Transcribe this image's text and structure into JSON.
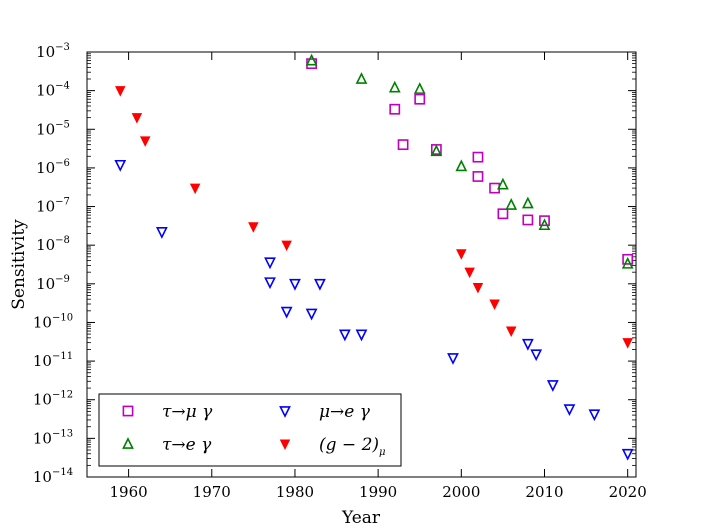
{
  "chart_data": {
    "type": "scatter",
    "title": "",
    "xlabel": "Year",
    "ylabel": "Sensitivity",
    "xlim": [
      1955,
      2021
    ],
    "ylim_log10": [
      -14,
      -3
    ],
    "y_scale": "log",
    "x_ticks": [
      1960,
      1970,
      1980,
      1990,
      2000,
      2010,
      2020
    ],
    "y_ticks": [
      {
        "base": "10",
        "exp": "-3"
      },
      {
        "base": "10",
        "exp": "-4"
      },
      {
        "base": "10",
        "exp": "-5"
      },
      {
        "base": "10",
        "exp": "-6"
      },
      {
        "base": "10",
        "exp": "-7"
      },
      {
        "base": "10",
        "exp": "-8"
      },
      {
        "base": "10",
        "exp": "-9"
      },
      {
        "base": "10",
        "exp": "-10"
      },
      {
        "base": "10",
        "exp": "-11"
      },
      {
        "base": "10",
        "exp": "-12"
      },
      {
        "base": "10",
        "exp": "-13"
      },
      {
        "base": "10",
        "exp": "-14"
      }
    ],
    "legend_position": "lower-left",
    "grid": false,
    "series": [
      {
        "name": "tau-mu-gamma",
        "label": "τ→μ γ",
        "marker": "square",
        "color": "#bf00bf",
        "points": [
          [
            1982,
            0.0005
          ],
          [
            1992,
            3.3e-05
          ],
          [
            1993,
            4e-06
          ],
          [
            1995,
            6e-05
          ],
          [
            1997,
            3e-06
          ],
          [
            2002,
            1.9e-06
          ],
          [
            2002,
            6e-07
          ],
          [
            2004,
            3e-07
          ],
          [
            2005,
            6.5e-08
          ],
          [
            2008,
            4.5e-08
          ],
          [
            2010,
            4.3e-08
          ],
          [
            2020,
            4.3e-09
          ]
        ]
      },
      {
        "name": "tau-e-gamma",
        "label": "τ→e γ",
        "marker": "triangle-up",
        "color": "#008000",
        "points": [
          [
            1982,
            0.0006
          ],
          [
            1988,
            0.0002
          ],
          [
            1992,
            0.00012
          ],
          [
            1995,
            0.00011
          ],
          [
            1997,
            2.7e-06
          ],
          [
            2000,
            1.1e-06
          ],
          [
            2005,
            3.7e-07
          ],
          [
            2006,
            1.1e-07
          ],
          [
            2008,
            1.2e-07
          ],
          [
            2010,
            3.3e-08
          ],
          [
            2020,
            3.3e-09
          ]
        ]
      },
      {
        "name": "mu-e-gamma",
        "label": "μ→e γ",
        "marker": "triangle-down",
        "color": "#0000ff",
        "points": [
          [
            1959,
            1.2e-06
          ],
          [
            1964,
            2.2e-08
          ],
          [
            1977,
            3.6e-09
          ],
          [
            1977,
            1.1e-09
          ],
          [
            1979,
            1.9e-10
          ],
          [
            1980,
            1e-09
          ],
          [
            1982,
            1.7e-10
          ],
          [
            1983,
            1e-09
          ],
          [
            1986,
            4.9e-11
          ],
          [
            1988,
            4.9e-11
          ],
          [
            1999,
            1.2e-11
          ],
          [
            2008,
            2.8e-11
          ],
          [
            2009,
            1.5e-11
          ],
          [
            2011,
            2.4e-12
          ],
          [
            2013,
            5.7e-13
          ],
          [
            2016,
            4.2e-13
          ],
          [
            2020,
            4e-14
          ]
        ]
      },
      {
        "name": "g-2-mu",
        "label": "(g − 2)μ",
        "label_main": "(g − 2)",
        "label_sub": "μ",
        "marker": "triangle-down-filled",
        "color": "#ff0000",
        "points": [
          [
            1959,
            0.0001
          ],
          [
            1961,
            2e-05
          ],
          [
            1962,
            5e-06
          ],
          [
            1968,
            3e-07
          ],
          [
            1975,
            3e-08
          ],
          [
            1979,
            1e-08
          ],
          [
            2000,
            6e-09
          ],
          [
            2001,
            2e-09
          ],
          [
            2002,
            8e-10
          ],
          [
            2004,
            3e-10
          ],
          [
            2006,
            6e-11
          ],
          [
            2020,
            3e-11
          ]
        ]
      }
    ]
  }
}
